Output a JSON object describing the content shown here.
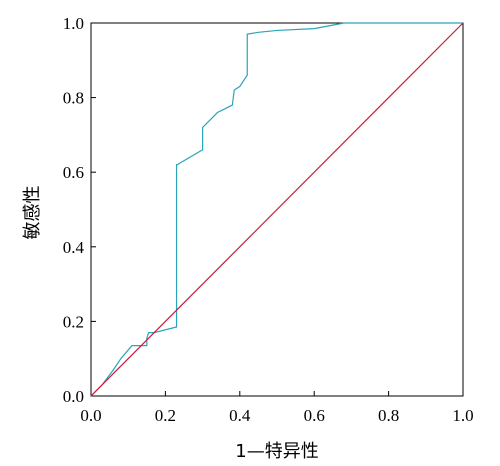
{
  "chart_data": {
    "type": "line",
    "xlabel": "1—特异性",
    "ylabel": "敏感性",
    "xlim": [
      0.0,
      1.0
    ],
    "ylim": [
      0.0,
      1.0
    ],
    "x_ticks": [
      0.0,
      0.2,
      0.4,
      0.6,
      0.8,
      1.0
    ],
    "y_ticks": [
      0.0,
      0.2,
      0.4,
      0.6,
      0.8,
      1.0
    ],
    "x_tick_labels": [
      "0.0",
      "0.2",
      "0.4",
      "0.6",
      "0.8",
      "1.0"
    ],
    "y_tick_labels": [
      "0.0",
      "0.2",
      "0.4",
      "0.6",
      "0.8",
      "1.0"
    ],
    "grid": false,
    "series": [
      {
        "color": "#2aa4b8",
        "x": [
          0.0,
          0.03,
          0.06,
          0.08,
          0.11,
          0.15,
          0.15,
          0.155,
          0.17,
          0.23,
          0.23,
          0.232,
          0.24,
          0.3,
          0.3,
          0.34,
          0.36,
          0.38,
          0.385,
          0.4,
          0.42,
          0.42,
          0.45,
          0.5,
          0.6,
          0.68,
          0.68,
          0.75,
          1.0
        ],
        "y": [
          0.0,
          0.03,
          0.07,
          0.1,
          0.135,
          0.135,
          0.155,
          0.17,
          0.17,
          0.185,
          0.62,
          0.62,
          0.625,
          0.66,
          0.72,
          0.76,
          0.77,
          0.78,
          0.82,
          0.83,
          0.86,
          0.97,
          0.975,
          0.98,
          0.985,
          1.0,
          1.0,
          1.0,
          1.0
        ]
      },
      {
        "color": "#cc1a3a",
        "x": [
          0.0,
          1.0
        ],
        "y": [
          0.0,
          1.0
        ]
      }
    ]
  }
}
